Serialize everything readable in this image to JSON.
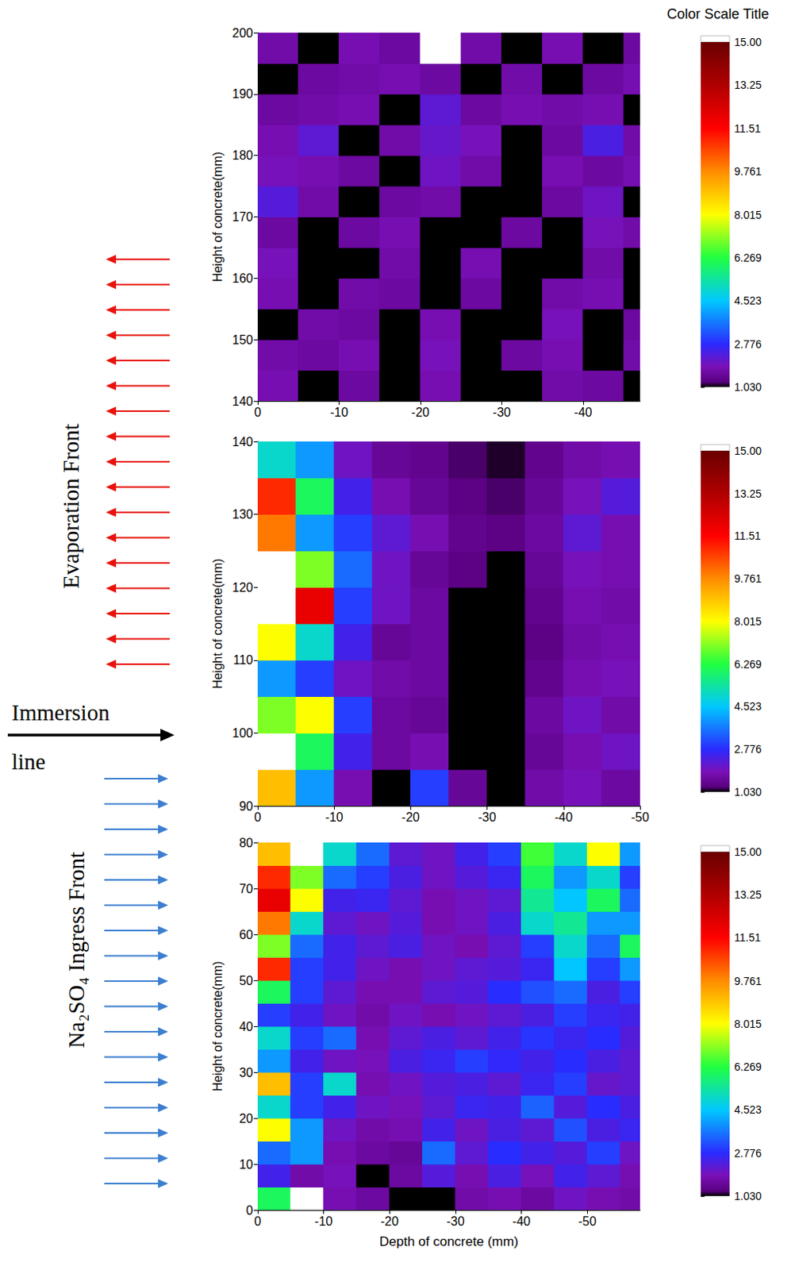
{
  "chart_data": [
    {
      "type": "heatmap",
      "ylabel": "Height of concrete(mm)",
      "xlim": [
        0,
        -47
      ],
      "xticks": [
        0,
        -10,
        -20,
        -30,
        -40
      ],
      "ylim": [
        140,
        200
      ],
      "yticks": [
        140,
        150,
        160,
        170,
        180,
        190,
        200
      ],
      "x": [
        -2.5,
        -7.5,
        -12.5,
        -17.5,
        -22.5,
        -27.5,
        -32.5,
        -37.5,
        -42.5,
        -47.5
      ],
      "y": [
        142.5,
        147.5,
        152.5,
        157.5,
        162.5,
        167.5,
        172.5,
        177.5,
        182.5,
        187.5,
        192.5,
        197.5
      ],
      "z": [
        [
          1.8,
          1,
          1.6,
          1,
          1.8,
          1,
          1,
          1.7,
          1.6,
          1
        ],
        [
          1.7,
          1.6,
          1.8,
          1,
          1.9,
          1,
          1.6,
          1.8,
          1,
          1.7
        ],
        [
          1,
          1.7,
          1.6,
          1,
          1.8,
          1,
          1,
          1.9,
          1,
          1.6
        ],
        [
          1.8,
          1,
          1.7,
          1.6,
          1,
          1.6,
          1,
          1.7,
          1.8,
          1
        ],
        [
          1.9,
          1,
          1,
          1.7,
          1,
          1.8,
          1,
          1,
          1.7,
          1
        ],
        [
          1.6,
          1,
          1.6,
          1.8,
          1,
          1,
          1.6,
          1,
          1.9,
          1.7
        ],
        [
          2.3,
          1.7,
          1,
          1.6,
          1.7,
          1,
          1,
          1.6,
          2.0,
          1
        ],
        [
          1.9,
          1.8,
          1.6,
          1,
          2.0,
          1.7,
          1,
          1.8,
          1.6,
          1.8
        ],
        [
          1.8,
          2.2,
          1,
          1.7,
          2.1,
          1.9,
          1,
          1.6,
          2.4,
          1.7
        ],
        [
          1.6,
          1.7,
          1.8,
          1,
          2.2,
          1.6,
          1.8,
          1.7,
          1.8,
          1
        ],
        [
          1,
          1.6,
          1.7,
          1.8,
          1.6,
          1,
          1.7,
          1,
          1.6,
          1.8
        ],
        [
          1.7,
          1,
          1.8,
          1.6,
          16,
          1.7,
          1,
          1.8,
          1,
          1.6
        ]
      ],
      "colorbar": {
        "title": "Color Scale Title",
        "range": [
          1.03,
          15
        ],
        "ticks": [
          {
            "value": 1.03,
            "label": "1.030"
          },
          2.776,
          4.523,
          6.269,
          8.015,
          9.761,
          11.51,
          13.25,
          {
            "value": 15,
            "label": "15.00"
          }
        ]
      }
    },
    {
      "type": "heatmap",
      "ylabel": "Height of concrete(mm)",
      "xlim": [
        0,
        -50
      ],
      "xticks": [
        0,
        -10,
        -20,
        -30,
        -40,
        -50
      ],
      "ylim": [
        90,
        140
      ],
      "yticks": [
        90,
        100,
        110,
        120,
        130,
        140
      ],
      "x": [
        -2.5,
        -7.5,
        -12.5,
        -17.5,
        -22.5,
        -27.5,
        -32.5,
        -37.5,
        -42.5,
        -47.5
      ],
      "y": [
        92.5,
        97.5,
        102.5,
        107.5,
        112.5,
        117.5,
        122.5,
        127.5,
        132.5,
        137.5
      ],
      "z": [
        [
          9,
          4,
          1.8,
          1,
          3,
          1.5,
          1,
          1.7,
          1.9,
          1.6
        ],
        [
          16,
          6,
          2.5,
          1.6,
          1.8,
          1,
          1,
          1.5,
          1.8,
          2
        ],
        [
          7,
          8,
          3,
          1.6,
          1.5,
          1,
          1,
          1.6,
          2,
          1.7
        ],
        [
          4,
          3,
          2,
          1.7,
          1.6,
          1,
          1,
          1.4,
          1.8,
          1.9
        ],
        [
          8,
          5,
          2.5,
          1.5,
          1.6,
          1,
          1,
          1.3,
          1.7,
          1.8
        ],
        [
          16,
          12,
          3,
          2,
          1.6,
          1,
          1,
          1.4,
          1.8,
          1.7
        ],
        [
          16,
          7,
          3.5,
          2,
          1.5,
          1.3,
          1,
          1.5,
          1.9,
          1.8
        ],
        [
          10,
          4,
          3,
          2.2,
          1.8,
          1.4,
          1.3,
          1.6,
          2.2,
          1.8
        ],
        [
          11,
          6,
          2.5,
          1.8,
          1.5,
          1.3,
          1.2,
          1.5,
          1.9,
          2.3
        ],
        [
          5,
          4,
          2,
          1.5,
          1.4,
          1.2,
          1.1,
          1.4,
          1.7,
          1.8
        ]
      ],
      "colorbar": {
        "range": [
          1.03,
          15
        ],
        "ticks": [
          {
            "value": 1.03,
            "label": "1.030"
          },
          2.776,
          4.523,
          6.269,
          8.015,
          9.761,
          11.51,
          13.25,
          {
            "value": 15,
            "label": "15.00"
          }
        ]
      }
    },
    {
      "type": "heatmap",
      "xlabel": "Depth of concrete (mm)",
      "ylabel": "Height of concrete(mm)",
      "xlim": [
        0,
        -58
      ],
      "xticks": [
        0,
        -10,
        -20,
        -30,
        -40,
        -50
      ],
      "ylim": [
        0,
        80
      ],
      "yticks": [
        0,
        10,
        20,
        30,
        40,
        50,
        60,
        70,
        80
      ],
      "x": [
        -2.5,
        -7.5,
        -12.5,
        -17.5,
        -22.5,
        -27.5,
        -32.5,
        -37.5,
        -42.5,
        -47.5,
        -52.5,
        -57.5
      ],
      "y": [
        2.5,
        7.5,
        12.5,
        17.5,
        22.5,
        27.5,
        32.5,
        37.5,
        42.5,
        47.5,
        52.5,
        57.5,
        62.5,
        67.5,
        72.5,
        77.5
      ],
      "z": [
        [
          6,
          16,
          1.8,
          1.6,
          1,
          1,
          1.7,
          1.8,
          1.6,
          2,
          1.8,
          1.7
        ],
        [
          2.5,
          1.7,
          1.9,
          1,
          1.6,
          2.3,
          1.8,
          2.4,
          1.9,
          2.5,
          2.2,
          1.8
        ],
        [
          3.5,
          4,
          1.8,
          1.6,
          1.5,
          3.5,
          2.2,
          2.8,
          2.5,
          2.3,
          3,
          2
        ],
        [
          8,
          4,
          2,
          1.7,
          1.8,
          2.5,
          2,
          2.4,
          2.2,
          3.2,
          2.4,
          2.6
        ],
        [
          5,
          3,
          2.5,
          2,
          1.9,
          2.2,
          2.6,
          2.5,
          3.4,
          2.3,
          2.8,
          2.4
        ],
        [
          9,
          3,
          5,
          1.8,
          2,
          2.3,
          2.4,
          2.2,
          2.6,
          3,
          2.1,
          2.2
        ],
        [
          4,
          2.5,
          2,
          1.9,
          2.4,
          2.6,
          3,
          2.7,
          2.5,
          2.8,
          2.4,
          2.2
        ],
        [
          5,
          3,
          3.5,
          1.8,
          2.2,
          2.4,
          2.2,
          2.5,
          2.9,
          2.6,
          2.8,
          2.3
        ],
        [
          3,
          2.5,
          2,
          1.7,
          2,
          1.8,
          2,
          2.2,
          2.4,
          3,
          2.6,
          2.5
        ],
        [
          6,
          3,
          2.2,
          1.8,
          1.8,
          2.2,
          2.3,
          2.8,
          3.2,
          3.5,
          2.4,
          3
        ],
        [
          11,
          3,
          2.5,
          2,
          1.8,
          2,
          2.2,
          2.3,
          2.6,
          4.5,
          3,
          4
        ],
        [
          7,
          3.5,
          2.5,
          2.2,
          2.4,
          2,
          1.8,
          2.2,
          3,
          5,
          3.5,
          6
        ],
        [
          10,
          5,
          2.2,
          2,
          2.3,
          1.8,
          2,
          2.4,
          5,
          5.5,
          4,
          4
        ],
        [
          12,
          8,
          2.5,
          2.6,
          2.2,
          1.8,
          2,
          2.2,
          5.5,
          4.5,
          6,
          3.5
        ],
        [
          11,
          7,
          3.5,
          3,
          2.4,
          2,
          2.3,
          2.6,
          6,
          4,
          5,
          3
        ],
        [
          9,
          16,
          5,
          3.5,
          2.2,
          2,
          2.5,
          3,
          6.5,
          5,
          8,
          4
        ]
      ],
      "colorbar": {
        "range": [
          1.03,
          15
        ],
        "ticks": [
          {
            "value": 1.03,
            "label": "1.030"
          },
          2.776,
          4.523,
          6.269,
          8.015,
          9.761,
          11.51,
          13.25,
          {
            "value": 15,
            "label": "15.00"
          }
        ]
      }
    }
  ],
  "annotations": {
    "evaporation": "Evaporation Front",
    "immersion": "Immersion line",
    "ingress": "Na₂SO₄ Ingress Front"
  }
}
